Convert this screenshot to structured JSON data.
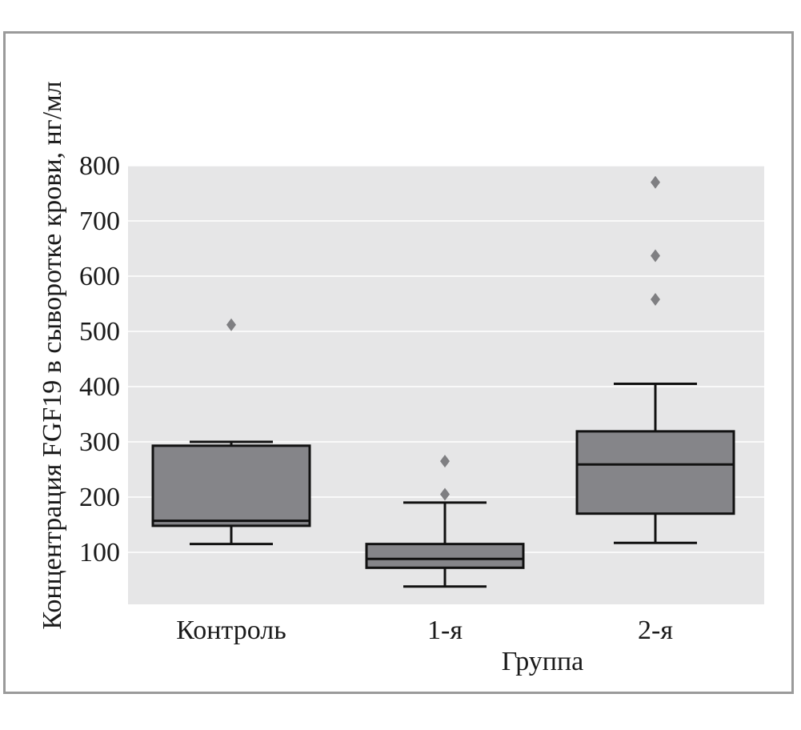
{
  "chart_data": {
    "type": "box",
    "xlabel": "Группа",
    "ylabel": "Концентрация FGF19 в сыворотке крови, нг/мл",
    "ylim": [
      0,
      800
    ],
    "yticks": [
      100,
      200,
      300,
      400,
      500,
      600,
      700,
      800
    ],
    "grid": true,
    "categories": [
      "Контроль",
      "1-я",
      "2-я"
    ],
    "boxes": [
      {
        "category": "Контроль",
        "whisker_low": 115,
        "q1": 148,
        "median": 157,
        "q3": 293,
        "whisker_high": 300,
        "outliers": [
          512
        ]
      },
      {
        "category": "1-я",
        "whisker_low": 38,
        "q1": 72,
        "median": 88,
        "q3": 115,
        "whisker_high": 190,
        "outliers": [
          205,
          265
        ]
      },
      {
        "category": "2-я",
        "whisker_low": 117,
        "q1": 170,
        "median": 259,
        "q3": 319,
        "whisker_high": 405,
        "outliers": [
          558,
          637,
          770
        ]
      }
    ],
    "colors": {
      "plot_bg": "#e6e6e7",
      "grid": "#ffffff",
      "box_fill": "#858589",
      "line": "#111111",
      "outlier": "#7f7f82"
    }
  }
}
